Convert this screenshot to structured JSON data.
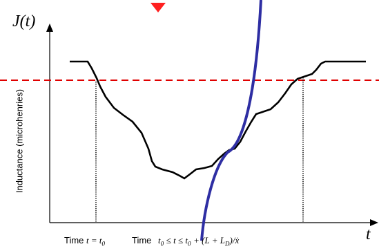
{
  "y_axis": {
    "symbol": "J(t)",
    "label": "Inductance (microhenries)"
  },
  "x_axis": {
    "symbol": "t",
    "caption_left_word": "Time",
    "caption_left_math": "t = t",
    "caption_left_sub": "0",
    "caption_right_word": "Time",
    "caption_right_math": "t",
    "caption_right_formula": "≤ t ≤ t",
    "caption_right_tail": "+ (L + L",
    "caption_right_sub_d": "D",
    "caption_right_end": ")/ẋ"
  },
  "colors": {
    "curve": "#000000",
    "threshold": "#e00000",
    "blue_curve": "#2e2ea3",
    "arrow": "#ff2020"
  }
}
